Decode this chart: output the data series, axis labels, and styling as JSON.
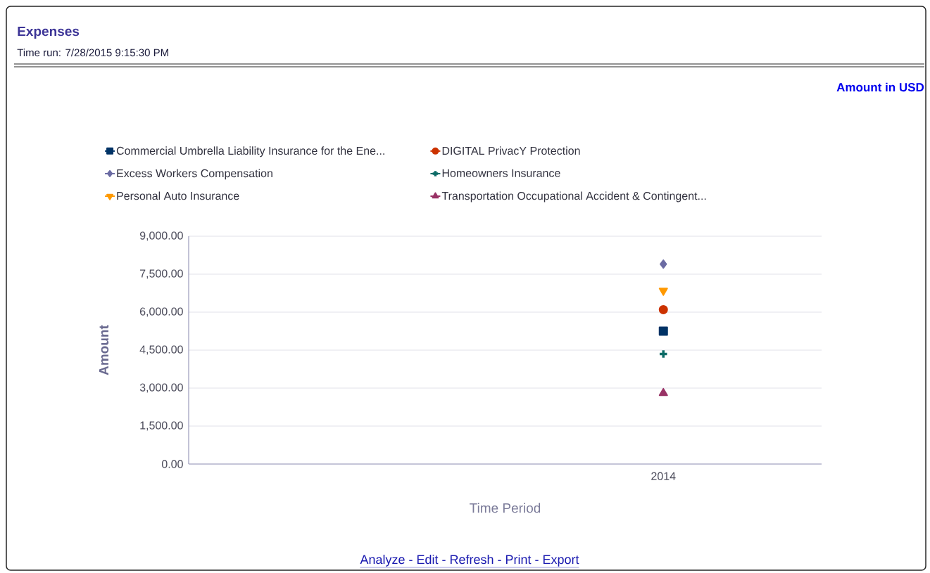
{
  "chart_data": {
    "type": "line",
    "title": "Expenses",
    "subtitle": "Time run: 7/28/2015 9:15:30 PM",
    "annotations": [
      "Amount in USD",
      "Analyze - Edit - Refresh - Print - Export"
    ],
    "xlabel": "Time Period",
    "ylabel": "Amount",
    "categories": [
      null,
      "2014"
    ],
    "series": [
      {
        "name": "Commercial Umbrella Liability Insurance for the Ene...",
        "color": "#003366",
        "marker": "square",
        "values": [
          null,
          5250
        ]
      },
      {
        "name": "DIGITAL PrivacY Protection",
        "color": "#cc3300",
        "marker": "circle",
        "values": [
          null,
          6100
        ]
      },
      {
        "name": "Excess Workers Compensation",
        "color": "#6b6ba3",
        "marker": "diamond",
        "values": [
          null,
          7900
        ]
      },
      {
        "name": "Homeowners Insurance",
        "color": "#0b6b66",
        "marker": "cross",
        "values": [
          null,
          4350
        ]
      },
      {
        "name": "Personal Auto Insurance",
        "color": "#ff9900",
        "marker": "triangle-down",
        "values": [
          null,
          6850
        ]
      },
      {
        "name": "Transportation Occupational Accident & Contingent...",
        "color": "#993366",
        "marker": "triangle",
        "values": [
          null,
          2800
        ]
      }
    ],
    "ylim": [
      0,
      9000
    ],
    "yticks": [
      {
        "value": 0,
        "label": "0.00"
      },
      {
        "value": 1500,
        "label": "1,500.00"
      },
      {
        "value": 3000,
        "label": "3,000.00"
      },
      {
        "value": 4500,
        "label": "4,500.00"
      },
      {
        "value": 6000,
        "label": "6,000.00"
      },
      {
        "value": 7500,
        "label": "7,500.00"
      },
      {
        "value": 9000,
        "label": "9,000.00"
      }
    ],
    "grid": "y",
    "legend": "top"
  }
}
